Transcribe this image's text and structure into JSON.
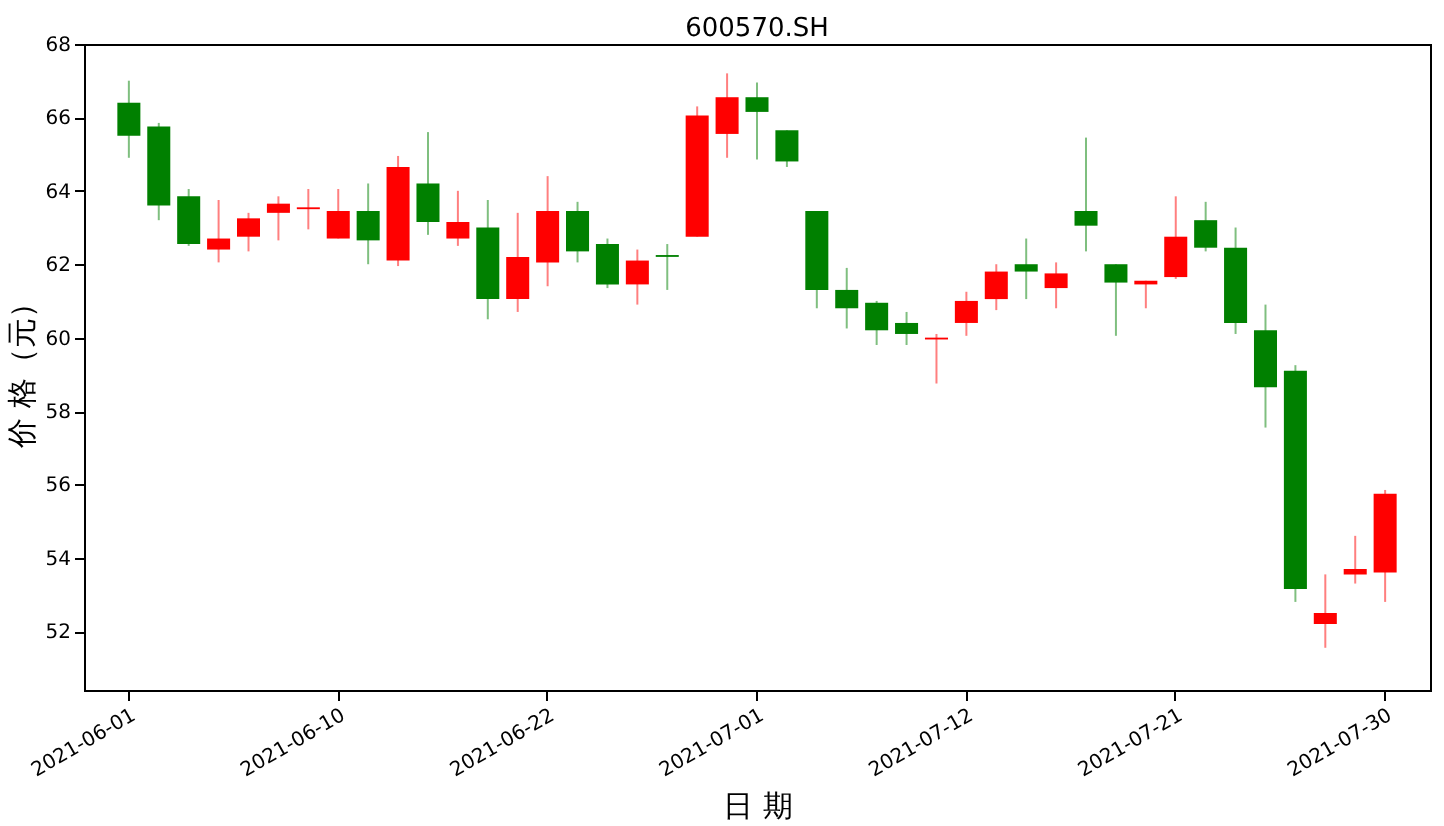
{
  "chart_data": {
    "type": "candlestick",
    "title": "600570.SH",
    "xlabel": "日 期",
    "ylabel": "价 格（元）",
    "categories": [
      "2021-06-01",
      null,
      null,
      null,
      null,
      null,
      null,
      "2021-06-10",
      null,
      null,
      null,
      null,
      null,
      null,
      "2021-06-22",
      null,
      null,
      null,
      null,
      null,
      null,
      "2021-07-01",
      null,
      null,
      null,
      null,
      null,
      null,
      "2021-07-12",
      null,
      null,
      null,
      null,
      null,
      null,
      "2021-07-21",
      null,
      null,
      null,
      null,
      null,
      null,
      "2021-07-30"
    ],
    "ohlc": [
      [
        66.4,
        67.0,
        64.9,
        65.5
      ],
      [
        65.75,
        65.85,
        63.2,
        63.6
      ],
      [
        63.85,
        64.05,
        62.5,
        62.55
      ],
      [
        62.4,
        63.75,
        62.05,
        62.7
      ],
      [
        62.75,
        63.4,
        62.35,
        63.25
      ],
      [
        63.4,
        63.85,
        62.65,
        63.65
      ],
      [
        63.5,
        64.05,
        62.95,
        63.55
      ],
      [
        62.7,
        64.05,
        62.7,
        63.45
      ],
      [
        63.45,
        64.2,
        62.0,
        62.65
      ],
      [
        62.1,
        64.95,
        61.95,
        64.65
      ],
      [
        64.2,
        65.6,
        62.8,
        63.15
      ],
      [
        62.7,
        64.0,
        62.5,
        63.15
      ],
      [
        63.0,
        63.75,
        60.5,
        61.05
      ],
      [
        61.05,
        63.4,
        60.7,
        62.2
      ],
      [
        62.05,
        64.4,
        61.4,
        63.45
      ],
      [
        63.45,
        63.7,
        62.05,
        62.35
      ],
      [
        62.55,
        62.7,
        61.35,
        61.45
      ],
      [
        61.45,
        62.4,
        60.9,
        62.1
      ],
      [
        62.25,
        62.55,
        61.3,
        62.2
      ],
      [
        62.75,
        66.3,
        62.75,
        66.05
      ],
      [
        65.55,
        67.2,
        64.9,
        66.55
      ],
      [
        66.55,
        66.95,
        64.85,
        66.15
      ],
      [
        65.65,
        65.65,
        64.65,
        64.8
      ],
      [
        63.45,
        63.45,
        60.8,
        61.3
      ],
      [
        61.3,
        61.9,
        60.25,
        60.8
      ],
      [
        60.95,
        61.0,
        59.8,
        60.2
      ],
      [
        60.4,
        60.7,
        59.8,
        60.1
      ],
      [
        59.95,
        60.1,
        58.75,
        60.0
      ],
      [
        60.4,
        61.25,
        60.05,
        61.0
      ],
      [
        61.05,
        62.0,
        60.75,
        61.8
      ],
      [
        62.0,
        62.7,
        61.05,
        61.8
      ],
      [
        61.35,
        62.05,
        60.8,
        61.75
      ],
      [
        63.45,
        65.45,
        62.35,
        63.05
      ],
      [
        62.0,
        62.0,
        60.05,
        61.5
      ],
      [
        61.45,
        61.55,
        60.8,
        61.55
      ],
      [
        61.65,
        63.85,
        61.6,
        62.75
      ],
      [
        63.2,
        63.7,
        62.35,
        62.45
      ],
      [
        62.45,
        63.0,
        60.1,
        60.4
      ],
      [
        60.2,
        60.9,
        57.55,
        58.65
      ],
      [
        59.1,
        59.25,
        52.8,
        53.15
      ],
      [
        52.2,
        53.55,
        51.55,
        52.5
      ],
      [
        53.55,
        54.6,
        53.3,
        53.7
      ],
      [
        53.6,
        55.85,
        52.8,
        55.75
      ]
    ],
    "colors": [
      "#008000",
      "#008000",
      "#008000",
      "#ff0000",
      "#ff0000",
      "#ff0000",
      "#ff0000",
      "#ff0000",
      "#008000",
      "#ff0000",
      "#008000",
      "#ff0000",
      "#008000",
      "#ff0000",
      "#ff0000",
      "#008000",
      "#008000",
      "#ff0000",
      "#008000",
      "#ff0000",
      "#ff0000",
      "#008000",
      "#008000",
      "#008000",
      "#008000",
      "#008000",
      "#008000",
      "#ff0000",
      "#ff0000",
      "#ff0000",
      "#008000",
      "#ff0000",
      "#008000",
      "#008000",
      "#ff0000",
      "#ff0000",
      "#008000",
      "#008000",
      "#008000",
      "#008000",
      "#ff0000",
      "#ff0000",
      "#ff0000"
    ],
    "ylim": [
      50.4,
      68
    ],
    "yticks": [
      52,
      54,
      56,
      58,
      60,
      62,
      64,
      66,
      68
    ]
  }
}
